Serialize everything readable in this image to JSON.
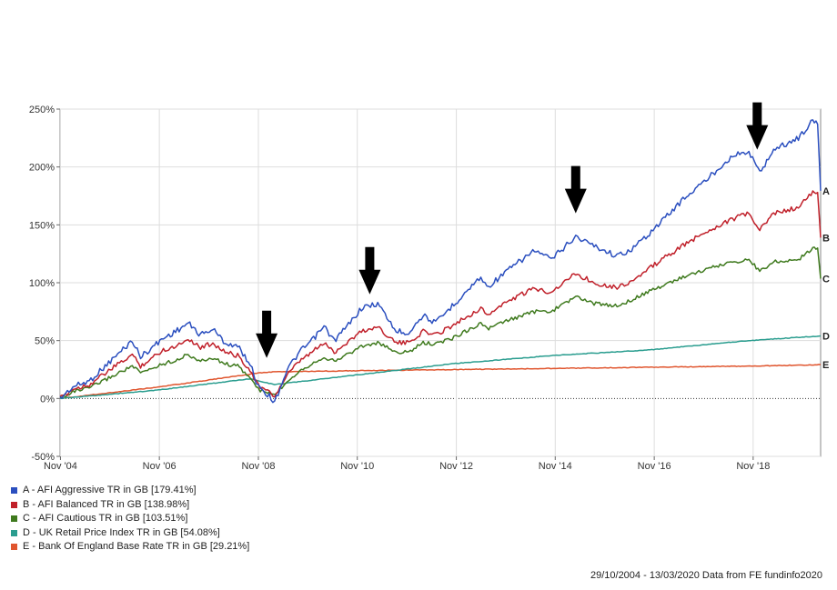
{
  "chart_data": {
    "type": "line",
    "x_range": [
      "2004-10-29",
      "2020-03-13"
    ],
    "y_range": [
      -50,
      250
    ],
    "y_ticks": [
      -50,
      0,
      50,
      100,
      150,
      200,
      250
    ],
    "y_tick_labels": [
      "-50%",
      "0%",
      "50%",
      "100%",
      "150%",
      "200%",
      "250%"
    ],
    "x_ticks": [
      "2004-11-01",
      "2006-11-01",
      "2008-11-01",
      "2010-11-01",
      "2012-11-01",
      "2014-11-01",
      "2016-11-01",
      "2018-11-01"
    ],
    "x_tick_labels": [
      "Nov '04",
      "Nov '06",
      "Nov '08",
      "Nov '10",
      "Nov '12",
      "Nov '14",
      "Nov '16",
      "Nov '18"
    ],
    "grid": true,
    "legend_position": "bottom-left",
    "series": [
      {
        "name": "A - AFI Aggressive TR in GB [179.41%]",
        "end_label": "A",
        "color": "#2b4fbf",
        "points": [
          [
            "2004-10-29",
            0
          ],
          [
            "2005-02-01",
            10
          ],
          [
            "2005-06-01",
            15
          ],
          [
            "2005-12-01",
            35
          ],
          [
            "2006-04-15",
            50
          ],
          [
            "2006-06-15",
            36
          ],
          [
            "2006-12-01",
            52
          ],
          [
            "2007-03-01",
            58
          ],
          [
            "2007-06-01",
            65
          ],
          [
            "2007-09-01",
            55
          ],
          [
            "2007-12-01",
            60
          ],
          [
            "2008-03-01",
            48
          ],
          [
            "2008-06-01",
            45
          ],
          [
            "2008-09-01",
            30
          ],
          [
            "2008-10-15",
            15
          ],
          [
            "2008-11-15",
            10
          ],
          [
            "2009-03-01",
            -3
          ],
          [
            "2009-06-01",
            25
          ],
          [
            "2009-09-01",
            40
          ],
          [
            "2009-12-01",
            50
          ],
          [
            "2010-03-01",
            62
          ],
          [
            "2010-05-15",
            50
          ],
          [
            "2010-08-01",
            60
          ],
          [
            "2010-12-01",
            78
          ],
          [
            "2011-04-01",
            82
          ],
          [
            "2011-08-15",
            58
          ],
          [
            "2011-11-15",
            57
          ],
          [
            "2012-03-01",
            72
          ],
          [
            "2012-06-01",
            65
          ],
          [
            "2012-10-01",
            80
          ],
          [
            "2013-05-01",
            105
          ],
          [
            "2013-06-15",
            96
          ],
          [
            "2013-12-01",
            112
          ],
          [
            "2014-06-01",
            128
          ],
          [
            "2014-10-01",
            120
          ],
          [
            "2015-04-01",
            140
          ],
          [
            "2015-08-15",
            132
          ],
          [
            "2016-02-01",
            123
          ],
          [
            "2016-06-01",
            130
          ],
          [
            "2016-12-01",
            150
          ],
          [
            "2017-06-01",
            172
          ],
          [
            "2017-12-01",
            190
          ],
          [
            "2018-06-01",
            210
          ],
          [
            "2018-10-01",
            213
          ],
          [
            "2018-12-20",
            195
          ],
          [
            "2019-04-01",
            215
          ],
          [
            "2019-10-01",
            225
          ],
          [
            "2020-01-15",
            240
          ],
          [
            "2020-02-20",
            237
          ],
          [
            "2020-03-13",
            179.41
          ]
        ]
      },
      {
        "name": "B - AFI Balanced TR in GB [138.98%]",
        "end_label": "B",
        "color": "#c0202a",
        "points": [
          [
            "2004-10-29",
            0
          ],
          [
            "2005-02-01",
            8
          ],
          [
            "2005-06-01",
            12
          ],
          [
            "2005-12-01",
            27
          ],
          [
            "2006-04-15",
            38
          ],
          [
            "2006-06-15",
            28
          ],
          [
            "2006-12-01",
            42
          ],
          [
            "2007-03-01",
            45
          ],
          [
            "2007-06-01",
            52
          ],
          [
            "2007-09-01",
            44
          ],
          [
            "2007-12-01",
            48
          ],
          [
            "2008-03-01",
            40
          ],
          [
            "2008-06-01",
            37
          ],
          [
            "2008-09-01",
            25
          ],
          [
            "2008-10-15",
            14
          ],
          [
            "2008-11-15",
            10
          ],
          [
            "2009-03-01",
            2
          ],
          [
            "2009-06-01",
            20
          ],
          [
            "2009-09-01",
            32
          ],
          [
            "2009-12-01",
            40
          ],
          [
            "2010-03-01",
            48
          ],
          [
            "2010-05-15",
            40
          ],
          [
            "2010-08-01",
            47
          ],
          [
            "2010-12-01",
            58
          ],
          [
            "2011-04-01",
            62
          ],
          [
            "2011-08-15",
            48
          ],
          [
            "2011-11-15",
            48
          ],
          [
            "2012-03-01",
            58
          ],
          [
            "2012-06-01",
            55
          ],
          [
            "2012-10-01",
            63
          ],
          [
            "2013-05-01",
            78
          ],
          [
            "2013-06-15",
            72
          ],
          [
            "2013-12-01",
            85
          ],
          [
            "2014-06-01",
            95
          ],
          [
            "2014-10-01",
            92
          ],
          [
            "2015-04-01",
            108
          ],
          [
            "2015-08-15",
            100
          ],
          [
            "2016-02-01",
            96
          ],
          [
            "2016-06-01",
            102
          ],
          [
            "2016-12-01",
            118
          ],
          [
            "2017-06-01",
            132
          ],
          [
            "2017-12-01",
            145
          ],
          [
            "2018-06-01",
            155
          ],
          [
            "2018-10-01",
            160
          ],
          [
            "2018-12-20",
            145
          ],
          [
            "2019-04-01",
            160
          ],
          [
            "2019-10-01",
            165
          ],
          [
            "2020-01-15",
            178
          ],
          [
            "2020-02-20",
            178
          ],
          [
            "2020-03-13",
            138.98
          ]
        ]
      },
      {
        "name": "C - AFI Cautious TR in GB [103.51%]",
        "end_label": "C",
        "color": "#3f7a1e",
        "points": [
          [
            "2004-10-29",
            0
          ],
          [
            "2005-02-01",
            6
          ],
          [
            "2005-06-01",
            9
          ],
          [
            "2005-12-01",
            20
          ],
          [
            "2006-04-15",
            28
          ],
          [
            "2006-06-15",
            22
          ],
          [
            "2006-12-01",
            30
          ],
          [
            "2007-03-01",
            33
          ],
          [
            "2007-06-01",
            38
          ],
          [
            "2007-09-01",
            32
          ],
          [
            "2007-12-01",
            35
          ],
          [
            "2008-03-01",
            30
          ],
          [
            "2008-06-01",
            28
          ],
          [
            "2008-09-01",
            18
          ],
          [
            "2008-10-15",
            10
          ],
          [
            "2008-11-15",
            7
          ],
          [
            "2009-03-01",
            3
          ],
          [
            "2009-06-01",
            15
          ],
          [
            "2009-09-01",
            24
          ],
          [
            "2009-12-01",
            30
          ],
          [
            "2010-03-01",
            36
          ],
          [
            "2010-05-15",
            32
          ],
          [
            "2010-08-01",
            37
          ],
          [
            "2010-12-01",
            45
          ],
          [
            "2011-04-01",
            48
          ],
          [
            "2011-08-15",
            40
          ],
          [
            "2011-11-15",
            40
          ],
          [
            "2012-03-01",
            48
          ],
          [
            "2012-06-01",
            47
          ],
          [
            "2012-10-01",
            52
          ],
          [
            "2013-05-01",
            65
          ],
          [
            "2013-06-15",
            60
          ],
          [
            "2013-12-01",
            68
          ],
          [
            "2014-06-01",
            75
          ],
          [
            "2014-10-01",
            75
          ],
          [
            "2015-04-01",
            88
          ],
          [
            "2015-08-15",
            82
          ],
          [
            "2016-02-01",
            80
          ],
          [
            "2016-06-01",
            86
          ],
          [
            "2016-12-01",
            96
          ],
          [
            "2017-06-01",
            105
          ],
          [
            "2017-12-01",
            112
          ],
          [
            "2018-06-01",
            118
          ],
          [
            "2018-10-01",
            120
          ],
          [
            "2018-12-20",
            110
          ],
          [
            "2019-04-01",
            118
          ],
          [
            "2019-10-01",
            120
          ],
          [
            "2020-01-15",
            130
          ],
          [
            "2020-02-20",
            130
          ],
          [
            "2020-03-13",
            103.51
          ]
        ]
      },
      {
        "name": "D - UK Retail Price Index TR in GB [54.08%]",
        "end_label": "D",
        "color": "#2a9d8f",
        "points": [
          [
            "2004-10-29",
            0
          ],
          [
            "2006-10-01",
            7
          ],
          [
            "2008-09-01",
            17
          ],
          [
            "2009-03-01",
            12
          ],
          [
            "2010-10-01",
            20
          ],
          [
            "2012-10-01",
            30
          ],
          [
            "2014-10-01",
            37
          ],
          [
            "2016-10-01",
            42
          ],
          [
            "2018-10-01",
            50
          ],
          [
            "2020-03-13",
            54.08
          ]
        ]
      },
      {
        "name": "E - Bank Of England Base Rate TR in GB [29.21%]",
        "end_label": "E",
        "color": "#e0552e",
        "points": [
          [
            "2004-10-29",
            0
          ],
          [
            "2005-11-01",
            5
          ],
          [
            "2006-11-01",
            10
          ],
          [
            "2007-11-01",
            16
          ],
          [
            "2008-11-01",
            22
          ],
          [
            "2009-03-01",
            23
          ],
          [
            "2010-11-01",
            24
          ],
          [
            "2012-11-01",
            25
          ],
          [
            "2016-11-01",
            27
          ],
          [
            "2018-11-01",
            28
          ],
          [
            "2020-03-13",
            29.21
          ]
        ]
      }
    ],
    "annotations": [
      {
        "type": "arrow-down",
        "x": "2009-01-01",
        "y": 35
      },
      {
        "type": "arrow-down",
        "x": "2011-02-01",
        "y": 90
      },
      {
        "type": "arrow-down",
        "x": "2015-04-01",
        "y": 160
      },
      {
        "type": "arrow-down",
        "x": "2018-12-01",
        "y": 215
      }
    ]
  },
  "legend": [
    {
      "label": "A - AFI Aggressive TR in GB [179.41%]",
      "color": "#2b4fbf"
    },
    {
      "label": "B - AFI Balanced TR in GB [138.98%]",
      "color": "#c0202a"
    },
    {
      "label": "C - AFI Cautious TR in GB [103.51%]",
      "color": "#3f7a1e"
    },
    {
      "label": "D - UK Retail Price Index TR in GB [54.08%]",
      "color": "#2a9d8f"
    },
    {
      "label": "E - Bank Of England Base Rate TR in GB [29.21%]",
      "color": "#e0552e"
    }
  ],
  "footer": "29/10/2004 - 13/03/2020 Data from FE fundinfo2020"
}
